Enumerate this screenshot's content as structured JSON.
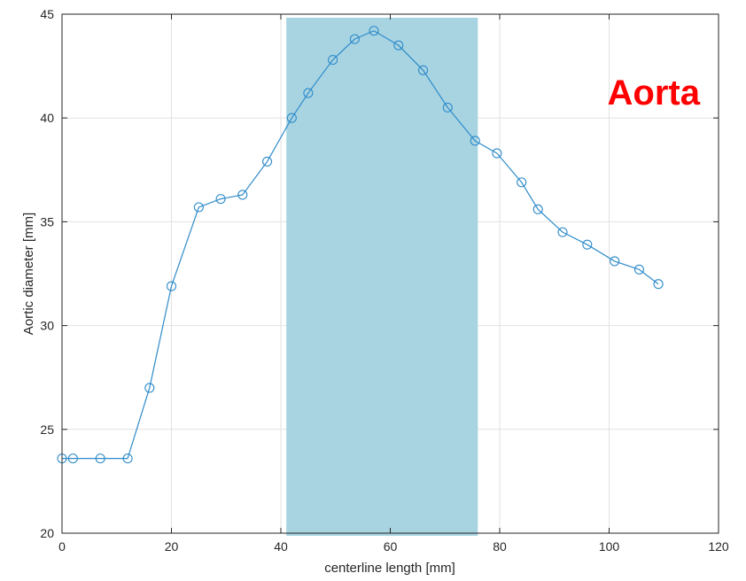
{
  "chart_data": {
    "type": "line",
    "xlabel": "centerline length [mm]",
    "ylabel": "Aortic diameter [mm]",
    "xlim": [
      0,
      120
    ],
    "ylim": [
      20,
      45
    ],
    "xticks": [
      0,
      20,
      40,
      60,
      80,
      100,
      120
    ],
    "yticks": [
      20,
      25,
      30,
      35,
      40,
      45
    ],
    "grid": true,
    "annotation": "Aorta",
    "highlight_region": {
      "x_start": 41,
      "x_end": 76
    },
    "colors": {
      "line": "#2e8bc9",
      "highlight": "#a8d4e2",
      "annotation": "#ff0000",
      "grid": "#e2e2e2"
    },
    "series": [
      {
        "marker": "circle",
        "x": [
          0,
          2,
          7,
          12,
          16,
          20,
          25,
          29,
          33,
          37.5,
          42,
          45,
          49.5,
          53.5,
          57,
          61.5,
          66,
          70.5,
          75.5,
          79.5,
          84,
          87,
          91.5,
          96,
          101,
          105.5,
          109
        ],
        "y": [
          23.6,
          23.6,
          23.6,
          23.6,
          27.0,
          31.9,
          35.7,
          36.1,
          36.3,
          37.9,
          40.0,
          41.2,
          42.8,
          43.8,
          44.2,
          43.5,
          42.3,
          40.5,
          38.9,
          38.3,
          36.9,
          35.6,
          34.5,
          33.9,
          33.1,
          32.7,
          32.0
        ]
      }
    ]
  }
}
